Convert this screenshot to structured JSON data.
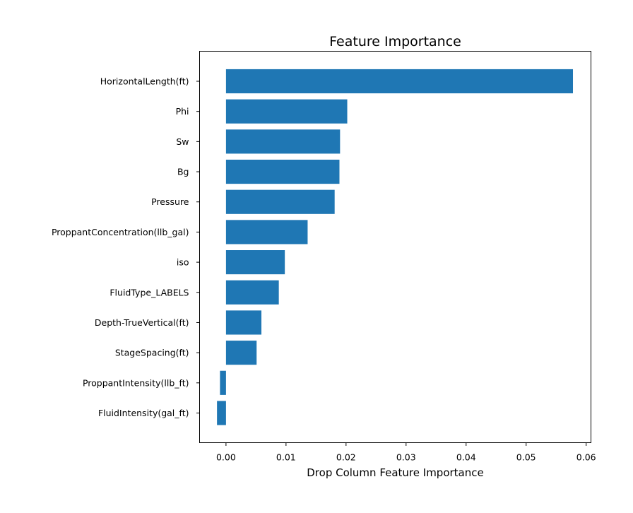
{
  "chart_data": {
    "type": "bar",
    "orientation": "horizontal",
    "title": "Feature Importance",
    "xlabel": "Drop Column Feature Importance",
    "ylabel": "",
    "categories": [
      "HorizontalLength(ft)",
      "Phi",
      "Sw",
      "Bg",
      "Pressure",
      "ProppantConcentration(llb_gal)",
      "iso",
      "FluidType_LABELS",
      "Depth-TrueVertical(ft)",
      "StageSpacing(ft)",
      "ProppantIntensity(llb_ft)",
      "FluidIntensity(gal_ft)"
    ],
    "values": [
      0.0578,
      0.0202,
      0.019,
      0.0189,
      0.0181,
      0.0136,
      0.0098,
      0.0088,
      0.0059,
      0.0051,
      -0.001,
      -0.0015
    ],
    "xlim": [
      -0.0044,
      0.0608
    ],
    "xticks": [
      0.0,
      0.01,
      0.02,
      0.03,
      0.04,
      0.05,
      0.06
    ],
    "xtick_labels": [
      "0.00",
      "0.01",
      "0.02",
      "0.03",
      "0.04",
      "0.05",
      "0.06"
    ],
    "bar_color": "#1f77b4",
    "grid": false,
    "legend": "none"
  }
}
